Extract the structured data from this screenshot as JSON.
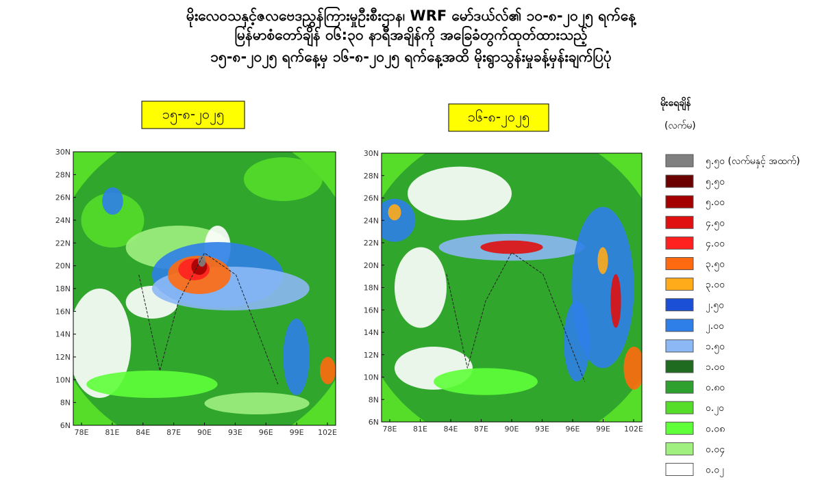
{
  "header": {
    "lines": [
      "မိုးလေဝသနှင့်ဇလဗေဒညွှန်ကြားမှုဦးစီးဌာန၊ WRF မော်ဒယ်လ်၏ ၁၀-၈-၂၀၂၅ ရက်နေ့",
      "မြန်မာစံတော်ချိန် ၀၆:၃၀ နာရီအချိန်ကို အခြေခံတွက်ထုတ်ထားသည့်",
      "၁၅-၈-၂၀၂၅ ရက်နေ့မှ ၁၆-၈-၂၀၂၅ ရက်နေ့အထိ မိုးရွာသွန်းမှုခန့်မှန်းချက်ပြပုံ"
    ]
  },
  "maps": [
    {
      "label": "၁၅-၈-၂၀၂၅",
      "xticks": [
        "78E",
        "81E",
        "84E",
        "87E",
        "90E",
        "93E",
        "96E",
        "99E",
        "102E"
      ],
      "yticks": [
        "6N",
        "8N",
        "10N",
        "12N",
        "14N",
        "16N",
        "18N",
        "20N",
        "22N",
        "24N",
        "26N",
        "28N",
        "30N"
      ]
    },
    {
      "label": "၁၆-၈-၂၀၂၅",
      "xticks": [
        "78E",
        "81E",
        "84E",
        "87E",
        "90E",
        "93E",
        "96E",
        "99E",
        "102E"
      ],
      "yticks": [
        "6N",
        "8N",
        "10N",
        "12N",
        "14N",
        "16N",
        "18N",
        "20N",
        "22N",
        "24N",
        "26N",
        "28N",
        "30N"
      ]
    }
  ],
  "legend": {
    "title": "မိုးရေချိန်",
    "unit": "(လက်မ)",
    "entries": [
      {
        "label": "၅.၅၀ (လက်မနှင့် အထက်)",
        "color": "#808080"
      },
      {
        "label": "၅.၅၀",
        "color": "#6b0000"
      },
      {
        "label": "၅.၀၀",
        "color": "#a50000"
      },
      {
        "label": "၄.၅၀",
        "color": "#e01010"
      },
      {
        "label": "၄.၀၀",
        "color": "#ff2020"
      },
      {
        "label": "၃.၅၀",
        "color": "#ff6a10"
      },
      {
        "label": "၃.၀၀",
        "color": "#ffab1a"
      },
      {
        "label": "၂.၅၀",
        "color": "#1a4fd6"
      },
      {
        "label": "၂.၀၀",
        "color": "#2f7fe8"
      },
      {
        "label": "၁.၅၀",
        "color": "#8cb8f5"
      },
      {
        "label": "၁.၀၀",
        "color": "#1f6b1f"
      },
      {
        "label": "၀.၈၀",
        "color": "#2ea02e"
      },
      {
        "label": "၀.၂၀",
        "color": "#55dd2a"
      },
      {
        "label": "၀.၀၈",
        "color": "#5fff3a"
      },
      {
        "label": "၀.၀၄",
        "color": "#a0f080"
      },
      {
        "label": "၀.၀၂",
        "color": "#ffffff"
      }
    ]
  }
}
